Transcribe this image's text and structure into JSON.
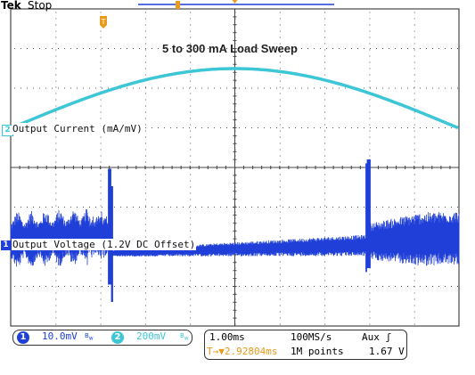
{
  "header": {
    "brand": "Tek",
    "status": "Stop"
  },
  "title": "5 to 300 mA Load Sweep",
  "colors": {
    "ch1": "#1f3fd8",
    "ch2": "#3cc6d6",
    "trigger": "#e89a1c",
    "grid": "#555555"
  },
  "channels": {
    "ch1": {
      "number": "1",
      "label": "Output Voltage (1.2V DC Offset)",
      "scale": "10.0mV",
      "bw_icon": "bandwidth-limit-icon"
    },
    "ch2": {
      "number": "2",
      "label": "Output Current (mA/mV)",
      "scale": "200mV",
      "bw_icon": "bandwidth-limit-icon"
    }
  },
  "timebase": {
    "time_div": "1.00ms",
    "sample_rate": "100MS/s",
    "trigger_source": "Aux ʃ",
    "delay": "T→▼2.92804ms",
    "points": "1M points",
    "trigger_level": "1.67 V"
  }
}
